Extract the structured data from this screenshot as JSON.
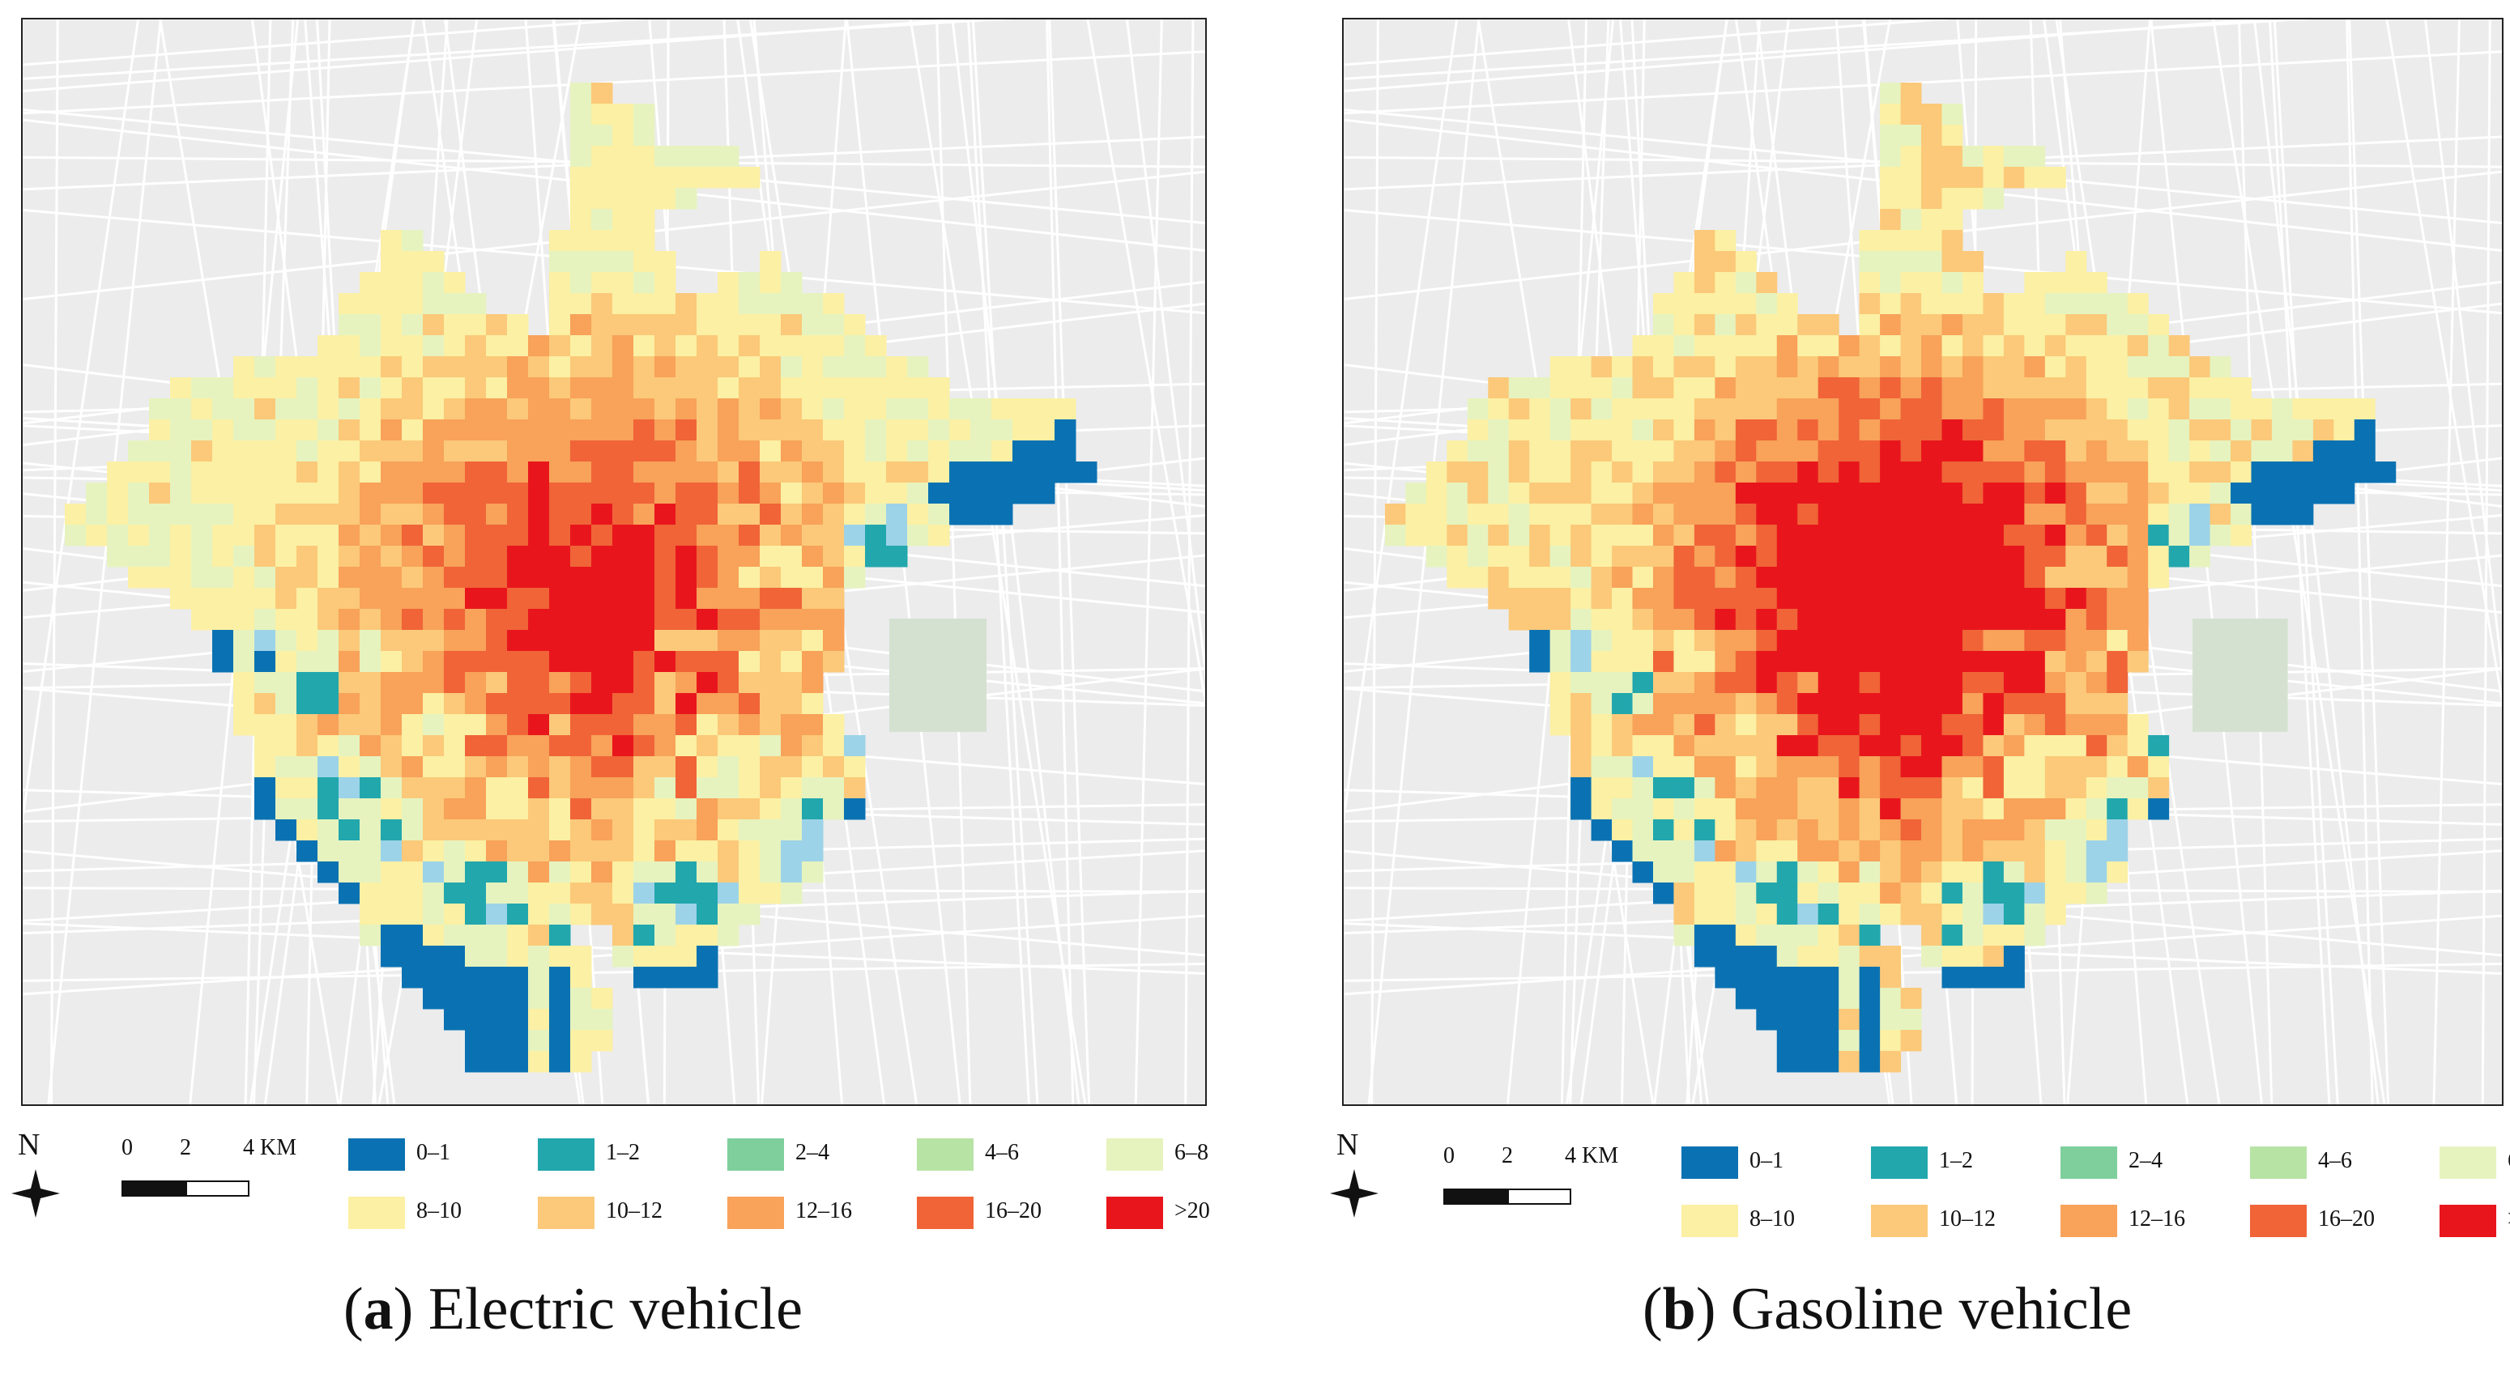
{
  "panels": [
    {
      "caption_letter": "a",
      "caption_text": "Electric vehicle",
      "north_label": "N",
      "scale_labels": [
        "0",
        "2",
        "4 KM"
      ],
      "intensity": 0.85
    },
    {
      "caption_letter": "b",
      "caption_text": "Gasoline vehicle",
      "north_label": "N",
      "scale_labels": [
        "0",
        "2",
        "4 KM"
      ],
      "intensity": 1.15
    }
  ],
  "legend": [
    {
      "label": "0–1",
      "color": "#0a72b2"
    },
    {
      "label": "1–2",
      "color": "#22a7ad"
    },
    {
      "label": "2–4",
      "color": "#7fcf9c"
    },
    {
      "label": "4–6",
      "color": "#b7e3a5"
    },
    {
      "label": "6–8",
      "color": "#e6f3bf"
    },
    {
      "label": "8–10",
      "color": "#fbf0a4"
    },
    {
      "label": "10–12",
      "color": "#fbc979"
    },
    {
      "label": "12–16",
      "color": "#f8a25a"
    },
    {
      "label": "16–20",
      "color": "#f06438"
    },
    {
      "label": ">20",
      "color": "#e8161c"
    }
  ],
  "colors": {
    "basemap": "#ececed",
    "road": "#ffffff",
    "park": "#d4e1d0",
    "road_cell": "#9dd3e8"
  }
}
